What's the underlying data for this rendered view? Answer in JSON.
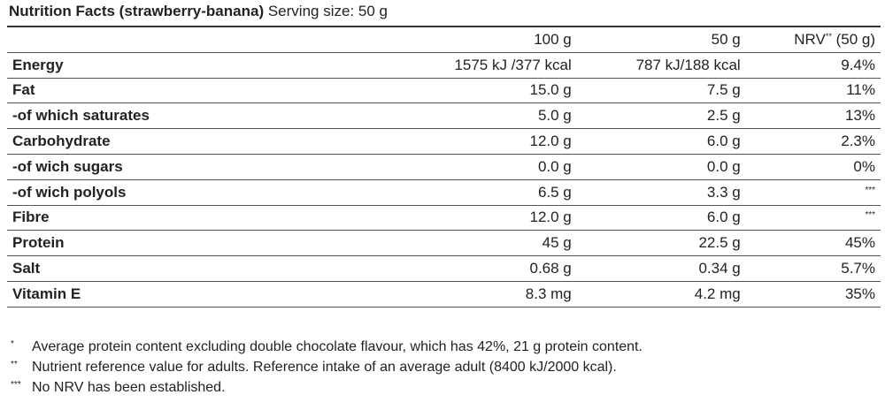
{
  "title": {
    "name": "Nutrition Facts (strawberry-banana)",
    "serving": "Serving size: 50 g"
  },
  "table": {
    "header": [
      {
        "text": "100 g"
      },
      {
        "text": "50 g"
      },
      {
        "text": "NRV",
        "mark": "**",
        "unit": "(50 g)"
      }
    ],
    "rows": [
      [
        "Energy",
        "1575 kJ /377 kcal",
        "787 kJ/188 kcal",
        "9.4%"
      ],
      [
        "Fat",
        "15.0 g",
        "7.5 g",
        "11%"
      ],
      [
        "-of which saturates",
        "5.0 g",
        "2.5 g",
        "13%"
      ],
      [
        "Carbohydrate",
        "12.0 g",
        "6.0 g",
        "2.3%"
      ],
      [
        "-of wich sugars",
        "0.0 g",
        "0.0 g",
        "0%"
      ],
      [
        "-of wich polyols",
        "6.5 g",
        "3.3 g",
        "***"
      ],
      [
        "Fibre",
        "12.0 g",
        "6.0 g",
        "***"
      ],
      [
        "Protein",
        "45 g",
        "22.5 g",
        "45%"
      ],
      [
        "Salt",
        "0.68 g",
        "0.34 g",
        "5.7%"
      ],
      [
        "Vitamin E",
        "8.3 mg",
        "4.2 mg",
        "35%"
      ]
    ]
  },
  "footnotes": [
    {
      "mark": "*",
      "text": "Average protein content excluding double chocolate flavour, which has 42%, 21 g protein content."
    },
    {
      "mark": "**",
      "text": "Nutrient reference value for adults. Reference intake of an average adult (8400 kJ/2000 kcal)."
    },
    {
      "mark": "***",
      "text": "No NRV has been established."
    }
  ]
}
